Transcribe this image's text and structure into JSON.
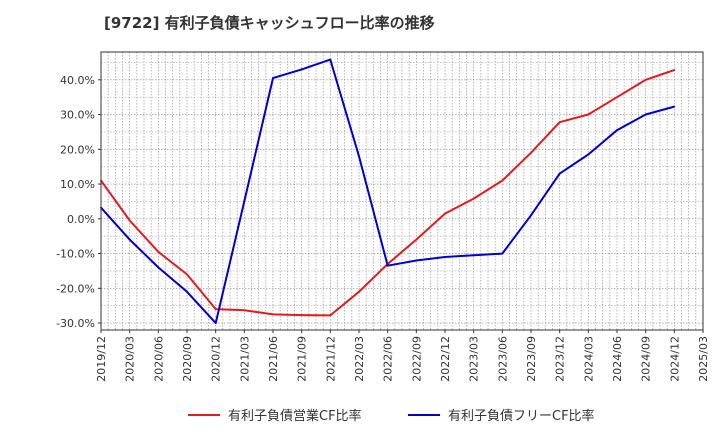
{
  "title": "[9722]  有利子負債キャッシュフロー比率の推移",
  "chart_data": {
    "type": "line",
    "title": "[9722]  有利子負債キャッシュフロー比率の推移",
    "xlabel": "",
    "ylabel": "",
    "x": [
      "2019/12",
      "2020/03",
      "2020/06",
      "2020/09",
      "2020/12",
      "2021/03",
      "2021/06",
      "2021/09",
      "2021/12",
      "2022/03",
      "2022/06",
      "2022/09",
      "2022/12",
      "2023/03",
      "2023/06",
      "2023/09",
      "2023/12",
      "2024/03",
      "2024/06",
      "2024/09",
      "2024/12",
      "2025/03"
    ],
    "ylim": [
      -32,
      48
    ],
    "yticks": [
      -30,
      -20,
      -10,
      0,
      10,
      20,
      30,
      40
    ],
    "ytick_labels": [
      "-30.0%",
      "-20.0%",
      "-10.0%",
      "0.0%",
      "10.0%",
      "20.0%",
      "30.0%",
      "40.0%"
    ],
    "grid": true,
    "legend_position": "bottom",
    "series": [
      {
        "name": "有利子負債営業CF比率",
        "color": "#e41a1c",
        "values": [
          11.0,
          -0.5,
          -9.5,
          -16.0,
          -26.0,
          -26.3,
          -27.5,
          -27.7,
          -27.8,
          -21.0,
          -13.0,
          -6.0,
          1.5,
          5.8,
          11.0,
          19.0,
          27.8,
          30.0,
          35.0,
          40.0,
          42.8,
          null
        ]
      },
      {
        "name": "有利子負債フリーCF比率",
        "color": "#0000cc",
        "values": [
          3.2,
          -6.0,
          -14.0,
          -21.0,
          -30.0,
          5.0,
          40.5,
          43.0,
          45.8,
          18.0,
          -13.5,
          -12.0,
          -11.0,
          -10.5,
          -10.0,
          1.0,
          13.0,
          18.5,
          25.5,
          30.0,
          32.3,
          null
        ]
      }
    ]
  }
}
